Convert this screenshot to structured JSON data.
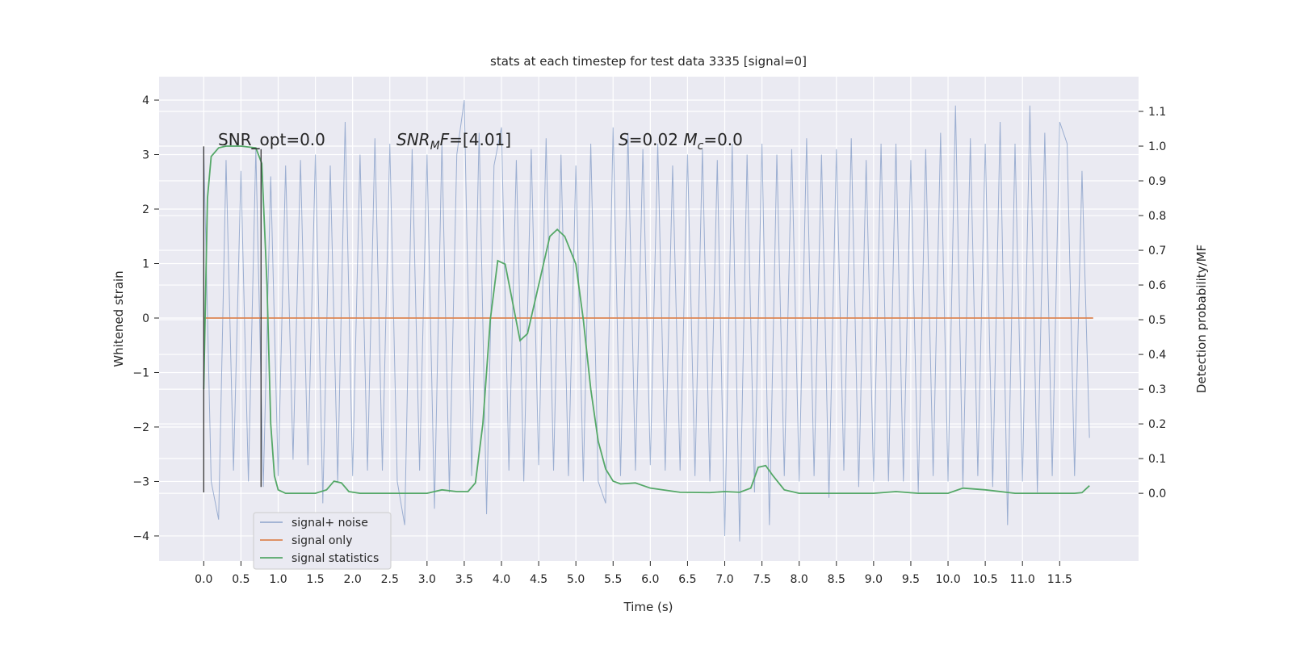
{
  "chart_data": {
    "type": "line",
    "title": "stats at each timestep for test data 3335 [signal=0]",
    "xlabel": "Time (s)",
    "ylabel": "Whitened strain",
    "y2label": "Detection probability/MF",
    "xlim": [
      -0.6,
      12.56
    ],
    "ylim": [
      -4.46,
      4.43
    ],
    "y2lim": [
      -0.195,
      1.2
    ],
    "xticks": [
      {
        "value": 0,
        "label": "0.0"
      },
      {
        "value": 0.5,
        "label": "0.5"
      },
      {
        "value": 1,
        "label": "1.0"
      },
      {
        "value": 1.5,
        "label": "1.5"
      },
      {
        "value": 2,
        "label": "2.0"
      },
      {
        "value": 2.5,
        "label": "2.5"
      },
      {
        "value": 3,
        "label": "3.0"
      },
      {
        "value": 3.5,
        "label": "3.5"
      },
      {
        "value": 4,
        "label": "4.0"
      },
      {
        "value": 4.5,
        "label": "4.5"
      },
      {
        "value": 5,
        "label": "5.0"
      },
      {
        "value": 5.5,
        "label": "5.5"
      },
      {
        "value": 6,
        "label": "6.0"
      },
      {
        "value": 6.5,
        "label": "6.5"
      },
      {
        "value": 7,
        "label": "7.0"
      },
      {
        "value": 7.5,
        "label": "7.5"
      },
      {
        "value": 8,
        "label": "8.0"
      },
      {
        "value": 8.5,
        "label": "8.5"
      },
      {
        "value": 9,
        "label": "9.0"
      },
      {
        "value": 9.5,
        "label": "9.5"
      },
      {
        "value": 10,
        "label": "10.0"
      },
      {
        "value": 10.5,
        "label": "10.5"
      },
      {
        "value": 11,
        "label": "11.0"
      },
      {
        "value": 11.5,
        "label": "11.5"
      }
    ],
    "yticks": [
      {
        "value": -4,
        "label": "−4"
      },
      {
        "value": -3,
        "label": "−3"
      },
      {
        "value": -2,
        "label": "−2"
      },
      {
        "value": -1,
        "label": "−1"
      },
      0,
      1,
      2,
      3,
      4
    ],
    "y2ticks": [
      {
        "value": 0,
        "label": "0.0"
      },
      {
        "value": 0.1,
        "label": "0.1"
      },
      {
        "value": 0.2,
        "label": "0.2"
      },
      {
        "value": 0.3,
        "label": "0.3"
      },
      {
        "value": 0.4,
        "label": "0.4"
      },
      {
        "value": 0.5,
        "label": "0.5"
      },
      {
        "value": 0.6,
        "label": "0.6"
      },
      {
        "value": 0.7,
        "label": "0.7"
      },
      {
        "value": 0.8,
        "label": "0.8"
      },
      {
        "value": 0.9,
        "label": "0.9"
      },
      {
        "value": 1,
        "label": "1.0"
      },
      {
        "value": 1.1,
        "label": "1.1"
      }
    ],
    "grid": true,
    "legend": "lower left",
    "series": [
      {
        "name": "signal+ noise",
        "color": "#4c72b0",
        "opacity": 0.5,
        "x": [
          0,
          0.1,
          0.2,
          0.3,
          0.4,
          0.5,
          0.6,
          0.7,
          0.8,
          0.9,
          1,
          1.1,
          1.2,
          1.3,
          1.4,
          1.5,
          1.6,
          1.7,
          1.8,
          1.9,
          2,
          2.1,
          2.2,
          2.3,
          2.4,
          2.5,
          2.6,
          2.7,
          2.8,
          2.9,
          3,
          3.1,
          3.2,
          3.3,
          3.4,
          3.5,
          3.6,
          3.7,
          3.8,
          3.9,
          4,
          4.1,
          4.2,
          4.3,
          4.4,
          4.5,
          4.6,
          4.7,
          4.8,
          4.9,
          5,
          5.1,
          5.2,
          5.3,
          5.4,
          5.5,
          5.6,
          5.7,
          5.8,
          5.9,
          6,
          6.1,
          6.2,
          6.3,
          6.4,
          6.5,
          6.6,
          6.7,
          6.8,
          6.9,
          7,
          7.1,
          7.2,
          7.3,
          7.4,
          7.5,
          7.6,
          7.7,
          7.8,
          7.9,
          8,
          8.1,
          8.2,
          8.3,
          8.4,
          8.5,
          8.6,
          8.7,
          8.8,
          8.9,
          9,
          9.1,
          9.2,
          9.3,
          9.4,
          9.5,
          9.6,
          9.7,
          9.8,
          9.9,
          10,
          10.1,
          10.2,
          10.3,
          10.4,
          10.5,
          10.6,
          10.7,
          10.8,
          10.9,
          11,
          11.1,
          11.2,
          11.3,
          11.4,
          11.5,
          11.6,
          11.7,
          11.8,
          11.9
        ],
        "values": [
          3.1,
          -3.0,
          -3.7,
          2.9,
          -2.8,
          2.7,
          -3.0,
          3.1,
          -3.1,
          2.6,
          -2.9,
          2.8,
          -2.6,
          2.9,
          -2.7,
          3.0,
          -3.4,
          2.8,
          -3.0,
          3.6,
          -2.9,
          3.0,
          -2.8,
          3.3,
          -2.8,
          3.2,
          -3.0,
          -3.8,
          3.1,
          -2.8,
          3.0,
          -3.5,
          3.2,
          -3.2,
          3.0,
          4.0,
          -2.9,
          3.4,
          -3.6,
          2.8,
          3.5,
          -2.8,
          2.9,
          -3.0,
          3.1,
          -2.7,
          3.3,
          -2.8,
          3.0,
          -2.9,
          2.8,
          -3.0,
          3.2,
          -3.0,
          -3.4,
          3.5,
          -2.9,
          3.4,
          -2.8,
          3.1,
          -2.7,
          3.2,
          -2.8,
          2.8,
          -2.8,
          3.0,
          -2.9,
          3.1,
          -3.0,
          2.9,
          -4.0,
          3.2,
          -4.1,
          3.0,
          -3.2,
          3.2,
          -3.8,
          3.0,
          -2.9,
          3.1,
          -3.0,
          3.3,
          -2.9,
          3.0,
          -3.3,
          3.1,
          -2.8,
          3.3,
          -3.1,
          2.9,
          -3.0,
          3.2,
          -3.0,
          3.2,
          -3.0,
          2.9,
          -3.2,
          3.1,
          -2.9,
          3.4,
          -3.0,
          3.9,
          -3.1,
          3.3,
          -2.9,
          3.2,
          -3.1,
          3.6,
          -3.8,
          3.2,
          -3.0,
          3.9,
          -3.2,
          3.4,
          -2.9,
          3.6,
          3.2,
          -2.9,
          2.7,
          -2.2
        ]
      },
      {
        "name": "signal only",
        "color": "#dd8452",
        "x": [
          0,
          11.95
        ],
        "values": [
          0,
          0
        ]
      },
      {
        "name": "signal statistics",
        "color": "#55a868",
        "axis": "y2",
        "x": [
          0,
          0.05,
          0.1,
          0.2,
          0.3,
          0.5,
          0.7,
          0.78,
          0.85,
          0.9,
          0.95,
          1,
          1.1,
          1.5,
          1.65,
          1.75,
          1.85,
          1.95,
          2.1,
          3,
          3.2,
          3.4,
          3.55,
          3.65,
          3.75,
          3.85,
          3.95,
          4.05,
          4.15,
          4.25,
          4.35,
          4.5,
          4.65,
          4.75,
          4.85,
          5,
          5.1,
          5.2,
          5.3,
          5.4,
          5.5,
          5.6,
          5.8,
          6,
          6.4,
          6.8,
          7,
          7.2,
          7.35,
          7.45,
          7.55,
          7.65,
          7.8,
          8,
          8.5,
          9,
          9.3,
          9.6,
          10,
          10.2,
          10.5,
          10.9,
          11.3,
          11.7,
          11.8,
          11.9
        ],
        "values": [
          0.3,
          0.85,
          0.97,
          0.995,
          1,
          1,
          0.995,
          0.95,
          0.6,
          0.2,
          0.05,
          0.01,
          0,
          0,
          0.01,
          0.035,
          0.03,
          0.005,
          0,
          0,
          0.01,
          0.005,
          0.005,
          0.03,
          0.2,
          0.5,
          0.67,
          0.66,
          0.55,
          0.44,
          0.46,
          0.6,
          0.74,
          0.76,
          0.74,
          0.66,
          0.5,
          0.3,
          0.15,
          0.07,
          0.035,
          0.027,
          0.03,
          0.015,
          0.003,
          0.002,
          0.005,
          0.003,
          0.015,
          0.075,
          0.08,
          0.05,
          0.01,
          0,
          0,
          0,
          0.005,
          0,
          0,
          0.015,
          0.01,
          0,
          0,
          0,
          0.002,
          0.022
        ]
      }
    ],
    "vlines": [
      {
        "x": 0,
        "ymin": -3.2,
        "ymax": 3.15
      },
      {
        "x": 0.77,
        "ymin": -3.1,
        "ymax": 3.1
      }
    ],
    "annotations": [
      [
        {
          "text": "SNR_opt=0.0"
        }
      ],
      [
        {
          "text": "SNR",
          "italic": true
        },
        {
          "text": "M",
          "italic": true,
          "sub": true
        },
        {
          "text": "F",
          "italic": true
        },
        {
          "text": "=[4.01]"
        }
      ],
      [
        {
          "text": "S",
          "italic": true
        },
        {
          "text": "=0.02   "
        },
        {
          "text": "M",
          "italic": true
        },
        {
          "text": "c",
          "italic": true,
          "sub": true
        },
        {
          "text": "=0.0"
        }
      ]
    ]
  }
}
